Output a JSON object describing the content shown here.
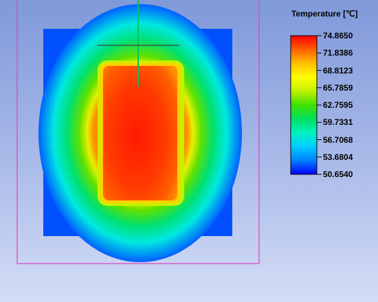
{
  "legend": {
    "title": "Temperature [℃]",
    "unit": "℃",
    "min": 50.654,
    "max": 74.865,
    "ticks": [
      "74.8650",
      "71.8386",
      "68.8123",
      "65.7859",
      "62.7595",
      "59.7331",
      "56.7068",
      "53.6804",
      "50.6540"
    ],
    "colormap": [
      "#0000ff",
      "#0080ff",
      "#00ccff",
      "#00f0c0",
      "#00e060",
      "#40e000",
      "#c0f000",
      "#ffff00",
      "#ffc000",
      "#ff6000",
      "#ff0000"
    ]
  },
  "colors": {
    "background_top": "#7f99d9",
    "background_bottom": "#d4ddf5",
    "enclosure_outline": "#e040c0",
    "probe_line": "#00c060",
    "crosshair": "#404040"
  }
}
